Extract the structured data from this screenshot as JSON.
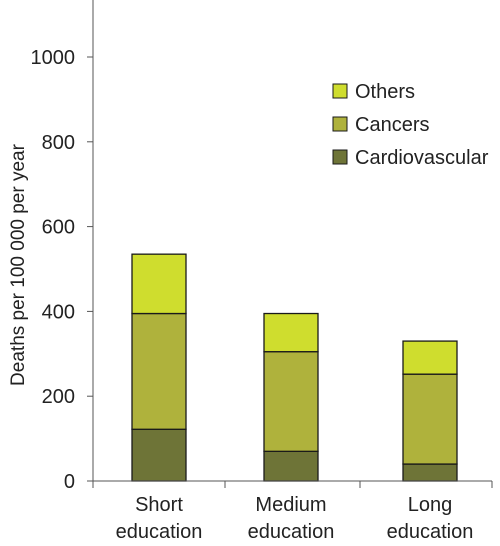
{
  "chart_data": {
    "type": "bar",
    "stacked": true,
    "categories": [
      [
        "Short",
        "education"
      ],
      [
        "Medium",
        "education"
      ],
      [
        "Long",
        "education"
      ]
    ],
    "series": [
      {
        "name": "Cardiovascular",
        "values": [
          122,
          70,
          40
        ],
        "color": "#6e7437"
      },
      {
        "name": "Cancers",
        "values": [
          273,
          235,
          212
        ],
        "color": "#afb23c"
      },
      {
        "name": "Others",
        "values": [
          140,
          90,
          78
        ],
        "color": "#cfdd2e"
      }
    ],
    "ylabel": "Deaths per 100 000 per year",
    "ylim": [
      0,
      1100
    ],
    "yticks": [
      0,
      200,
      400,
      600,
      800,
      1000
    ],
    "legend_order": [
      "Others",
      "Cancers",
      "Cardiovascular"
    ],
    "legend_position": "top-right",
    "grid": false
  }
}
